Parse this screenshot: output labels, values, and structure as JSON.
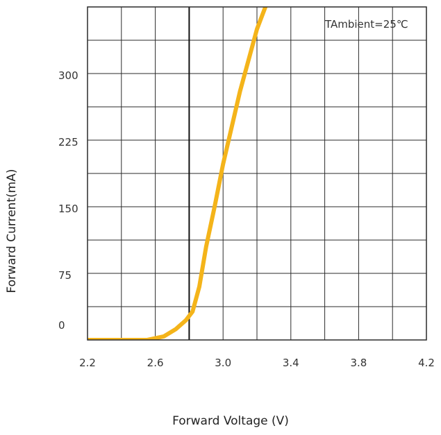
{
  "chart_data": {
    "type": "line",
    "title": "",
    "xlabel": "Forward Voltage (V)",
    "ylabel": "Forward Current(mA)",
    "annotation": "TAmbient=25℃",
    "xlim": [
      2.2,
      4.2
    ],
    "ylim": [
      0,
      375
    ],
    "x_ticks": [
      2.2,
      2.6,
      3.0,
      3.4,
      3.8,
      4.2
    ],
    "x_tick_labels": [
      "2.2",
      "2.6",
      "3.0",
      "3.4",
      "3.8",
      "4.2"
    ],
    "y_ticks": [
      0,
      75,
      150,
      225,
      300
    ],
    "y_tick_labels": [
      "0",
      "75",
      "150",
      "225",
      "300"
    ],
    "grid": true,
    "x_minor_step": 0.2,
    "y_minor_step": 37.5,
    "reference_line_x": 2.8,
    "series": [
      {
        "color": "#f4b41a",
        "x": [
          2.2,
          2.4,
          2.55,
          2.65,
          2.72,
          2.78,
          2.82,
          2.86,
          2.9,
          2.95,
          3.0,
          3.1,
          3.2,
          3.26
        ],
        "y": [
          0,
          0,
          0,
          4,
          12,
          22,
          32,
          60,
          105,
          150,
          198,
          280,
          350,
          380
        ]
      }
    ]
  }
}
